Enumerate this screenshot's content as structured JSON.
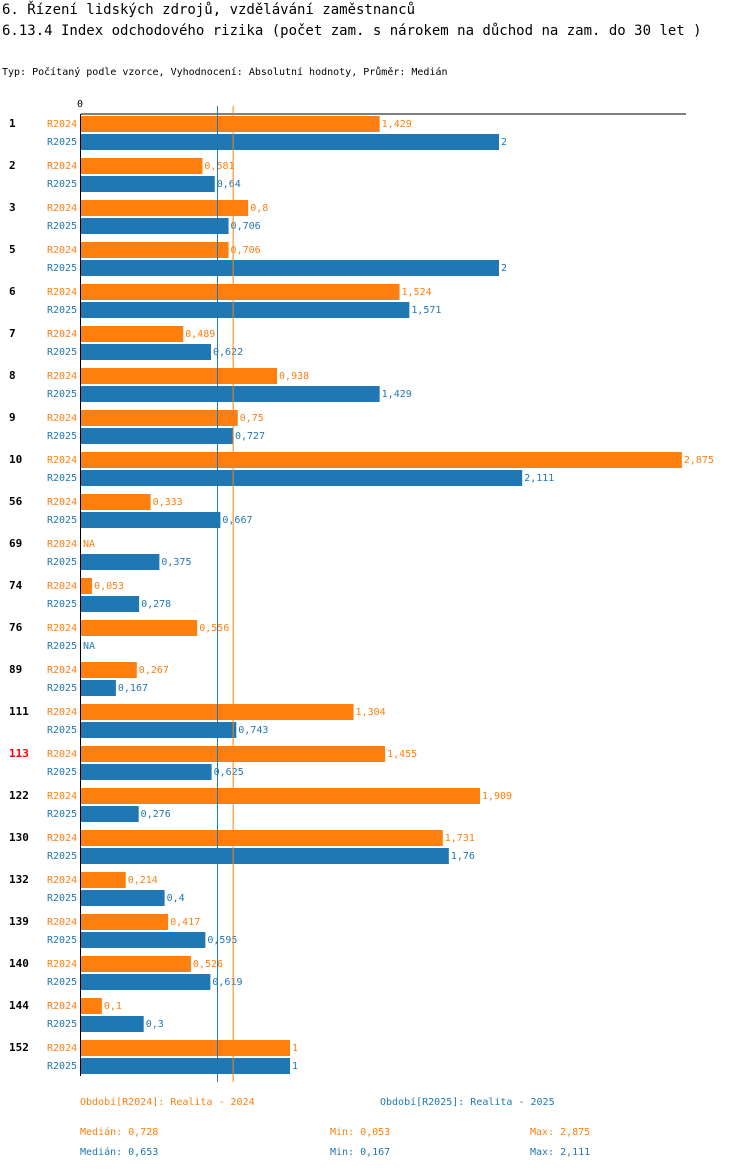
{
  "header": {
    "title": "6. Řízení lidských zdrojů, vzdělávání zaměstnanců",
    "subtitle": "6.13.4 Index odchodového rizika (počet zam. s nárokem na důchod na zam. do 30 let )",
    "info": "Typ: Počítaný podle vzorce, Vyhodnocení: Absolutní hodnoty, Průměr: Medián"
  },
  "colors": {
    "r2024": "#ff7f0e",
    "r2025": "#1f77b4",
    "highlight": "#ff0000"
  },
  "chart_data": {
    "type": "bar",
    "orientation": "horizontal",
    "xlim": [
      0,
      2.875
    ],
    "x_tick_label": "0",
    "highlight_category": "113",
    "categories": [
      "1",
      "2",
      "3",
      "5",
      "6",
      "7",
      "8",
      "9",
      "10",
      "56",
      "69",
      "74",
      "76",
      "89",
      "111",
      "113",
      "122",
      "130",
      "132",
      "139",
      "140",
      "144",
      "152"
    ],
    "series": [
      {
        "name": "R2024",
        "values": [
          1.429,
          0.581,
          0.8,
          0.706,
          1.524,
          0.489,
          0.938,
          0.75,
          2.875,
          0.333,
          null,
          0.053,
          0.556,
          0.267,
          1.304,
          1.455,
          1.909,
          1.731,
          0.214,
          0.417,
          0.526,
          0.1,
          1
        ],
        "labels": [
          "1,429",
          "0,581",
          "0,8",
          "0,706",
          "1,524",
          "0,489",
          "0,938",
          "0,75",
          "2,875",
          "0,333",
          "NA",
          "0,053",
          "0,556",
          "0,267",
          "1,304",
          "1,455",
          "1,909",
          "1,731",
          "0,214",
          "0,417",
          "0,526",
          "0,1",
          "1"
        ]
      },
      {
        "name": "R2025",
        "values": [
          2,
          0.64,
          0.706,
          2,
          1.571,
          0.622,
          1.429,
          0.727,
          2.111,
          0.667,
          0.375,
          0.278,
          null,
          0.167,
          0.743,
          0.625,
          0.276,
          1.76,
          0.4,
          0.595,
          0.619,
          0.3,
          1
        ],
        "labels": [
          "2",
          "0,64",
          "0,706",
          "2",
          "1,571",
          "0,622",
          "1,429",
          "0,727",
          "2,111",
          "0,667",
          "0,375",
          "0,278",
          "NA",
          "0,167",
          "0,743",
          "0,625",
          "0,276",
          "1,76",
          "0,4",
          "0,595",
          "0,619",
          "0,3",
          "1"
        ]
      }
    ],
    "median_lines": {
      "R2024": 0.728,
      "R2025": 0.653
    }
  },
  "legend": {
    "r2024": "Období[R2024]: Realita - 2024",
    "r2025": "Období[R2025]: Realita - 2025"
  },
  "stats": {
    "r2024": {
      "median": "Medián: 0,728",
      "min": "Min: 0,053",
      "max": "Max: 2,875"
    },
    "r2025": {
      "median": "Medián: 0,653",
      "min": "Min: 0,167",
      "max": "Max: 2,111"
    }
  }
}
